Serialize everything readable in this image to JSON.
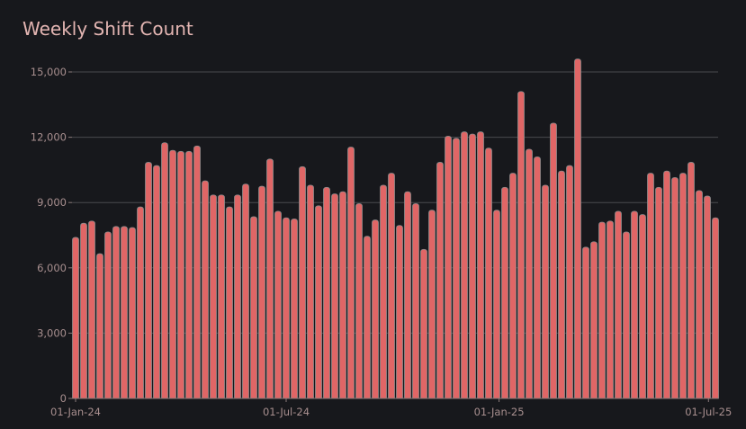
{
  "chart_data": {
    "type": "bar",
    "title": "Weekly Shift Count",
    "xlabel": "",
    "ylabel": "",
    "ylim": [
      0,
      15000
    ],
    "grid": true,
    "y_ticks": [
      "0",
      "3,000",
      "6,000",
      "9,000",
      "12,000",
      "15,000"
    ],
    "y_tick_values": [
      0,
      3000,
      6000,
      9000,
      12000,
      15000
    ],
    "x_ticks": [
      "01-Jan-24",
      "01-Jul-24",
      "01-Jan-25",
      "01-Jul-25"
    ],
    "x_tick_dates": [
      "2024-01-01",
      "2024-07-01",
      "2025-01-01",
      "2025-07-01"
    ],
    "colors": {
      "bar": "#e06666",
      "bar_edge": "#8c8c8c",
      "background": "#17181c",
      "grid": "#4a4a4e",
      "title": "#e3b5b2",
      "tick": "#a88f8f"
    },
    "x": [
      "2024-01-01",
      "2024-01-08",
      "2024-01-15",
      "2024-01-22",
      "2024-01-29",
      "2024-02-05",
      "2024-02-12",
      "2024-02-19",
      "2024-02-26",
      "2024-03-04",
      "2024-03-11",
      "2024-03-18",
      "2024-03-25",
      "2024-04-01",
      "2024-04-08",
      "2024-04-15",
      "2024-04-22",
      "2024-04-29",
      "2024-05-06",
      "2024-05-13",
      "2024-05-20",
      "2024-05-27",
      "2024-06-03",
      "2024-06-10",
      "2024-06-17",
      "2024-06-24",
      "2024-07-01",
      "2024-07-08",
      "2024-07-15",
      "2024-07-22",
      "2024-07-29",
      "2024-08-05",
      "2024-08-12",
      "2024-08-19",
      "2024-08-26",
      "2024-09-02",
      "2024-09-09",
      "2024-09-16",
      "2024-09-23",
      "2024-09-30",
      "2024-10-07",
      "2024-10-14",
      "2024-10-21",
      "2024-10-28",
      "2024-11-04",
      "2024-11-11",
      "2024-11-18",
      "2024-11-25",
      "2024-12-02",
      "2024-12-09",
      "2024-12-16",
      "2024-12-23",
      "2024-12-30",
      "2025-01-06",
      "2025-01-13",
      "2025-01-20",
      "2025-01-27",
      "2025-02-03",
      "2025-02-10",
      "2025-02-17",
      "2025-02-24",
      "2025-03-03",
      "2025-03-10",
      "2025-03-17",
      "2025-03-24",
      "2025-03-31",
      "2025-04-07",
      "2025-04-14",
      "2025-04-21",
      "2025-04-28",
      "2025-05-05",
      "2025-05-12",
      "2025-05-19",
      "2025-05-26",
      "2025-06-02",
      "2025-06-09",
      "2025-06-16",
      "2025-06-23",
      "2025-06-30",
      "2025-07-07"
    ],
    "values": [
      7400,
      8050,
      8150,
      6650,
      7650,
      7900,
      7900,
      7850,
      8800,
      10850,
      10700,
      11750,
      11400,
      11350,
      11350,
      11600,
      10000,
      9350,
      9350,
      8800,
      9350,
      9850,
      8350,
      9750,
      11000,
      8600,
      8300,
      8250,
      10650,
      9800,
      8850,
      9700,
      9400,
      9500,
      11550,
      8950,
      7450,
      8200,
      9800,
      10350,
      7950,
      9500,
      8950,
      6850,
      8650,
      10850,
      12050,
      11950,
      12250,
      12150,
      12250,
      11500,
      8650,
      9700,
      10350,
      14100,
      11450,
      11100,
      9800,
      12650,
      10450,
      10700,
      15600,
      6950,
      7200,
      8100,
      8150,
      8600,
      7650,
      8600,
      8450,
      10350,
      9700,
      10450,
      10150,
      10350,
      10850,
      9550,
      9300,
      8300
    ]
  }
}
